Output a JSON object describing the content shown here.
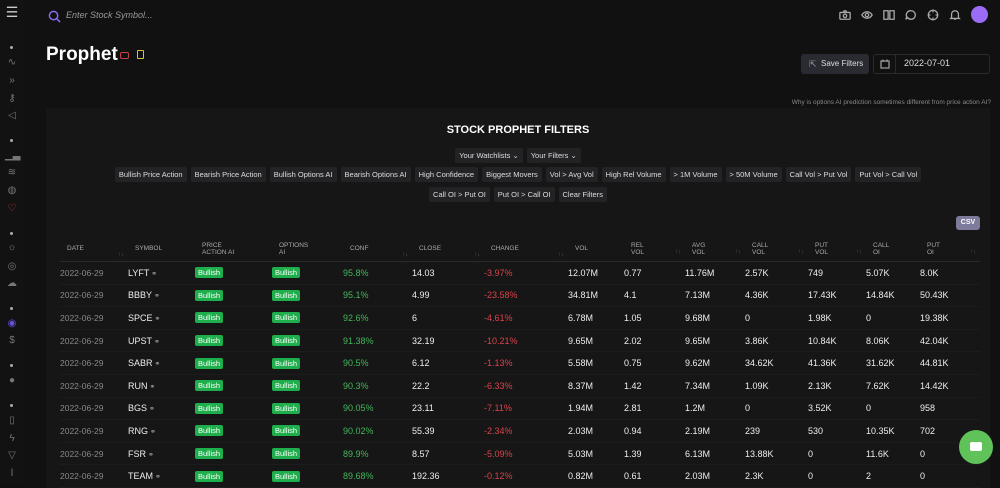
{
  "search": {
    "placeholder": "Enter Stock Symbol..."
  },
  "topbar": {
    "icons": [
      "camera-icon",
      "eye-icon",
      "book-icon",
      "chat-icon",
      "crosshair-icon",
      "bell-icon"
    ],
    "avatar_color": "#9b6cf5"
  },
  "page": {
    "title": "Prophet",
    "save_filters": "Save Filters",
    "date": "2022-07-01",
    "why_link": "Why is options AI prediction sometimes different from price action AI?"
  },
  "filters": {
    "title": "STOCK PROPHET FILTERS",
    "dropdowns": [
      "Your Watchlists",
      "Your Filters"
    ],
    "chips_row1": [
      "Bullish Price Action",
      "Bearish Price Action",
      "Bullish Options AI",
      "Bearish Options AI",
      "High Confidence",
      "Biggest Movers",
      "Vol > Avg Vol",
      "High Rel Volume",
      "> 1M Volume",
      "> 50M Volume",
      "Call Vol > Put Vol",
      "Put Vol > Call Vol"
    ],
    "chips_row2": [
      "Call OI > Put OI",
      "Put OI > Call OI",
      "Clear Filters"
    ]
  },
  "csv": "CSV",
  "table": {
    "headers": [
      [
        "DATE"
      ],
      [
        "SYMBOL"
      ],
      [
        "PRICE",
        "ACTION AI"
      ],
      [
        "OPTIONS",
        "AI"
      ],
      [
        "CONF"
      ],
      [
        "CLOSE"
      ],
      [
        "CHANGE"
      ],
      [
        "VOL"
      ],
      [
        "REL",
        "VOL"
      ],
      [
        "AVG",
        "VOL"
      ],
      [
        "CALL",
        "VOL"
      ],
      [
        "PUT",
        "VOL"
      ],
      [
        "CALL",
        "OI"
      ],
      [
        "PUT",
        "OI"
      ]
    ],
    "rows": [
      [
        "2022-06-29",
        "LYFT",
        "Bullish",
        "Bullish",
        "95.8%",
        "14.03",
        "-3.97%",
        "12.07M",
        "0.77",
        "11.76M",
        "2.57K",
        "749",
        "5.07K",
        "8.0K"
      ],
      [
        "2022-06-29",
        "BBBY",
        "Bullish",
        "Bullish",
        "95.1%",
        "4.99",
        "-23.58%",
        "34.81M",
        "4.1",
        "7.13M",
        "4.36K",
        "17.43K",
        "14.84K",
        "50.43K"
      ],
      [
        "2022-06-29",
        "SPCE",
        "Bullish",
        "Bullish",
        "92.6%",
        "6",
        "-4.61%",
        "6.78M",
        "1.05",
        "9.68M",
        "0",
        "1.98K",
        "0",
        "19.38K"
      ],
      [
        "2022-06-29",
        "UPST",
        "Bullish",
        "Bullish",
        "91.38%",
        "32.19",
        "-10.21%",
        "9.65M",
        "2.02",
        "9.65M",
        "3.86K",
        "10.84K",
        "8.06K",
        "42.04K"
      ],
      [
        "2022-06-29",
        "SABR",
        "Bullish",
        "Bullish",
        "90.5%",
        "6.12",
        "-1.13%",
        "5.58M",
        "0.75",
        "9.62M",
        "34.62K",
        "41.36K",
        "31.62K",
        "44.81K"
      ],
      [
        "2022-06-29",
        "RUN",
        "Bullish",
        "Bullish",
        "90.3%",
        "22.2",
        "-6.33%",
        "8.37M",
        "1.42",
        "7.34M",
        "1.09K",
        "2.13K",
        "7.62K",
        "14.42K"
      ],
      [
        "2022-06-29",
        "BGS",
        "Bullish",
        "Bullish",
        "90.05%",
        "23.11",
        "-7.11%",
        "1.94M",
        "2.81",
        "1.2M",
        "0",
        "3.52K",
        "0",
        "958"
      ],
      [
        "2022-06-29",
        "RNG",
        "Bullish",
        "Bullish",
        "90.02%",
        "55.39",
        "-2.34%",
        "2.03M",
        "0.94",
        "2.19M",
        "239",
        "530",
        "10.35K",
        "702"
      ],
      [
        "2022-06-29",
        "FSR",
        "Bullish",
        "Bullish",
        "89.9%",
        "8.57",
        "-5.09%",
        "5.03M",
        "1.39",
        "6.13M",
        "13.88K",
        "0",
        "11.6K",
        "0"
      ],
      [
        "2022-06-29",
        "TEAM",
        "Bullish",
        "Bullish",
        "89.68%",
        "192.36",
        "-0.12%",
        "0.82M",
        "0.61",
        "2.03M",
        "2.3K",
        "0",
        "2",
        "0"
      ]
    ]
  },
  "colors": {
    "bullish": "#1fae4c",
    "conf": "#45b65c",
    "change_negative": "#d9434b",
    "accent": "#9b6cf5"
  }
}
